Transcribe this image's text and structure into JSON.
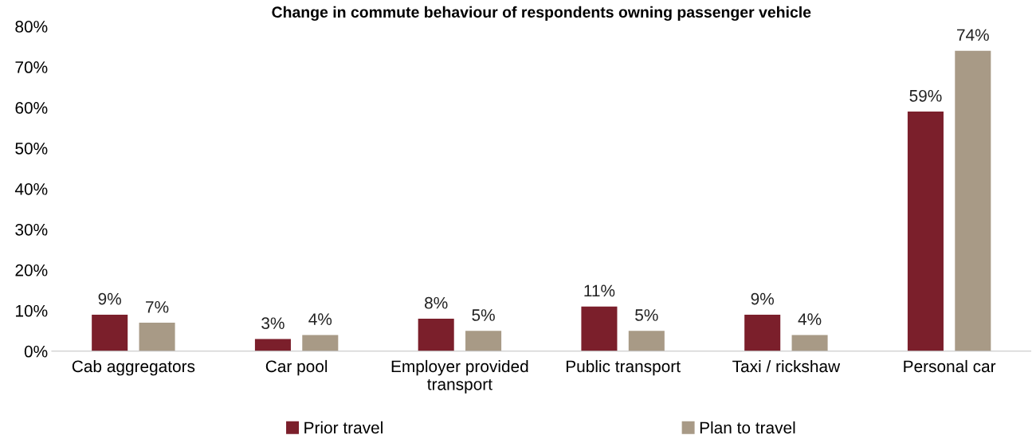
{
  "chart_data": {
    "type": "bar",
    "title": "Change in commute behaviour of respondents owning passenger vehicle",
    "categories": [
      "Cab aggregators",
      "Car pool",
      "Employer provided\ntransport",
      "Public transport",
      "Taxi / rickshaw",
      "Personal car"
    ],
    "series": [
      {
        "name": "Prior travel",
        "color": "#7b1f2b",
        "values": [
          9,
          3,
          8,
          11,
          9,
          59
        ],
        "value_labels": [
          "9%",
          "3%",
          "8%",
          "11%",
          "9%",
          "59%"
        ]
      },
      {
        "name": "Plan to travel",
        "color": "#a89a86",
        "values": [
          7,
          4,
          5,
          5,
          4,
          74
        ],
        "value_labels": [
          "7%",
          "4%",
          "5%",
          "5%",
          "4%",
          "74%"
        ]
      }
    ],
    "ylim": [
      0,
      80
    ],
    "yticks": [
      {
        "value": 0,
        "label": "0%"
      },
      {
        "value": 10,
        "label": "10%"
      },
      {
        "value": 20,
        "label": "20%"
      },
      {
        "value": 30,
        "label": "30%"
      },
      {
        "value": 40,
        "label": "40%"
      },
      {
        "value": 50,
        "label": "50%"
      },
      {
        "value": 60,
        "label": "60%"
      },
      {
        "value": 70,
        "label": "70%"
      },
      {
        "value": 80,
        "label": "80%"
      }
    ],
    "grid": false,
    "legend": "bottom"
  }
}
